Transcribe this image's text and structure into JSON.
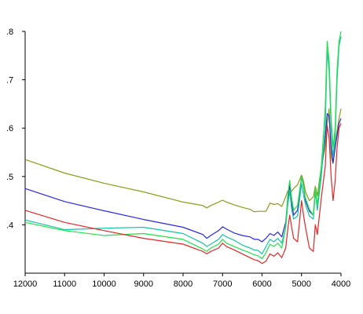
{
  "chart_data": {
    "type": "line",
    "title": "",
    "xlabel": "",
    "ylabel": "",
    "x_reversed": true,
    "xlim": [
      12000,
      4000
    ],
    "ylim": [
      0.3,
      0.8
    ],
    "grid": false,
    "legend": "none",
    "x_ticks": [
      12000,
      11000,
      10000,
      9000,
      8000,
      7000,
      6000,
      5000,
      4000
    ],
    "x_tick_labels": [
      "12000",
      "11000",
      "10000",
      "9000",
      "8000",
      "7000",
      "6000",
      "5000",
      "4000"
    ],
    "y_ticks": [
      0.4,
      0.5,
      0.6,
      0.7,
      0.8
    ],
    "y_tick_labels": [
      ".4",
      ".5",
      ".6",
      ".7",
      ".8"
    ],
    "x": [
      12000,
      11000,
      10000,
      9000,
      8000,
      7500,
      7400,
      7300,
      7100,
      7000,
      6900,
      6700,
      6500,
      6300,
      6200,
      6100,
      6000,
      5900,
      5800,
      5700,
      5600,
      5500,
      5400,
      5350,
      5300,
      5250,
      5200,
      5100,
      5000,
      4950,
      4900,
      4800,
      4700,
      4650,
      4600,
      4500,
      4400,
      4350,
      4300,
      4250,
      4200,
      4150,
      4100,
      4050,
      4000
    ],
    "series": [
      {
        "color": "#8c9c1c",
        "values": [
          0.535,
          0.507,
          0.486,
          0.468,
          0.447,
          0.44,
          0.435,
          0.44,
          0.447,
          0.451,
          0.447,
          0.441,
          0.436,
          0.432,
          0.427,
          0.428,
          0.428,
          0.428,
          0.445,
          0.442,
          0.444,
          0.438,
          0.458,
          0.47,
          0.465,
          0.47,
          0.475,
          0.483,
          0.503,
          0.49,
          0.468,
          0.45,
          0.458,
          0.48,
          0.46,
          0.52,
          0.56,
          0.605,
          0.64,
          0.54,
          0.527,
          0.565,
          0.595,
          0.62,
          0.64
        ]
      },
      {
        "color": "#2a2ad8",
        "values": [
          0.475,
          0.448,
          0.429,
          0.411,
          0.395,
          0.38,
          0.372,
          0.378,
          0.388,
          0.396,
          0.391,
          0.383,
          0.378,
          0.375,
          0.37,
          0.37,
          0.365,
          0.372,
          0.382,
          0.378,
          0.385,
          0.375,
          0.405,
          0.452,
          0.482,
          0.445,
          0.42,
          0.43,
          0.5,
          0.48,
          0.45,
          0.428,
          0.42,
          0.47,
          0.44,
          0.51,
          0.58,
          0.63,
          0.625,
          0.56,
          0.528,
          0.558,
          0.585,
          0.61,
          0.62
        ]
      },
      {
        "color": "#18c0a8",
        "values": [
          0.41,
          0.39,
          0.393,
          0.395,
          0.382,
          0.362,
          0.355,
          0.36,
          0.37,
          0.38,
          0.375,
          0.368,
          0.358,
          0.352,
          0.348,
          0.347,
          0.34,
          0.355,
          0.37,
          0.365,
          0.372,
          0.362,
          0.395,
          0.44,
          0.47,
          0.432,
          0.412,
          0.418,
          0.485,
          0.462,
          0.442,
          0.418,
          0.412,
          0.47,
          0.43,
          0.5,
          0.6,
          0.76,
          0.72,
          0.6,
          0.54,
          0.58,
          0.7,
          0.77,
          0.79
        ]
      },
      {
        "color": "#22e04a",
        "values": [
          0.405,
          0.388,
          0.378,
          0.382,
          0.37,
          0.35,
          0.345,
          0.352,
          0.36,
          0.37,
          0.362,
          0.355,
          0.348,
          0.342,
          0.338,
          0.336,
          0.33,
          0.342,
          0.36,
          0.355,
          0.362,
          0.352,
          0.395,
          0.46,
          0.492,
          0.455,
          0.43,
          0.44,
          0.5,
          0.48,
          0.455,
          0.432,
          0.42,
          0.475,
          0.44,
          0.52,
          0.64,
          0.78,
          0.74,
          0.62,
          0.56,
          0.6,
          0.72,
          0.78,
          0.8
        ]
      },
      {
        "color": "#e02828",
        "values": [
          0.43,
          0.405,
          0.388,
          0.372,
          0.36,
          0.345,
          0.34,
          0.345,
          0.352,
          0.362,
          0.355,
          0.348,
          0.34,
          0.332,
          0.328,
          0.326,
          0.32,
          0.325,
          0.34,
          0.335,
          0.342,
          0.332,
          0.352,
          0.39,
          0.42,
          0.395,
          0.372,
          0.365,
          0.45,
          0.42,
          0.395,
          0.352,
          0.345,
          0.4,
          0.38,
          0.455,
          0.52,
          0.605,
          0.58,
          0.5,
          0.45,
          0.49,
          0.56,
          0.6,
          0.61
        ]
      }
    ]
  }
}
